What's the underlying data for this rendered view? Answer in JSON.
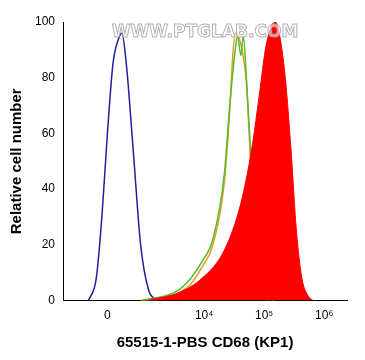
{
  "chart_data": {
    "type": "line",
    "annotations": [
      "WWW.PTGLAB.COM"
    ],
    "x_label": "65515-1-PBS CD68 (KP1)",
    "y_label": "Relative cell number",
    "series": [
      {
        "type": "area",
        "color": "#ff0000",
        "x": [
          1036,
          3900,
          9200,
          21600,
          41000,
          62700,
          84500,
          104600,
          129300,
          153500,
          181900,
          225000,
          278600,
          345000,
          426000,
          529000,
          654000
        ],
        "values": [
          0,
          3,
          8,
          18,
          35,
          55,
          75,
          90,
          98,
          100,
          95,
          80,
          55,
          25,
          8,
          2,
          0
        ]
      },
      {
        "type": "line",
        "color": "#5cb82e",
        "x": [
          808,
          2500,
          3900,
          6000,
          9200,
          14000,
          21600,
          26700,
          33000,
          36000,
          41000,
          45000,
          50600,
          62700,
          77600,
          96000,
          118800,
          147000
        ],
        "values": [
          0,
          2,
          4,
          8,
          14,
          22,
          45,
          70,
          90,
          95,
          88,
          95,
          80,
          45,
          18,
          5,
          1,
          0
        ]
      },
      {
        "type": "line",
        "color": "#d9a520",
        "x": [
          808,
          2500,
          3900,
          6000,
          9200,
          14000,
          21600,
          26700,
          30000,
          33000,
          41000,
          50600,
          62700,
          77600,
          96000,
          118800
        ],
        "values": [
          0,
          1,
          3,
          6,
          12,
          20,
          42,
          68,
          88,
          96,
          92,
          78,
          40,
          15,
          4,
          0
        ]
      },
      {
        "type": "line",
        "color": "#1f1fa0",
        "x": [
          -387,
          -216,
          -105,
          0,
          105,
          216,
          286,
          387,
          562,
          808,
          1132,
          1632
        ],
        "values": [
          0,
          8,
          30,
          60,
          85,
          94,
          96,
          85,
          55,
          20,
          4,
          0
        ]
      }
    ],
    "xlim": [
      -1300,
      2400000
    ],
    "xticks": [
      0,
      {
        "value": 10000,
        "label": "10⁴"
      },
      {
        "value": 100000,
        "label": "10⁵"
      },
      {
        "value": 1000000,
        "label": "10⁶"
      }
    ],
    "ylim": [
      0,
      100
    ],
    "yticks": [
      0,
      20,
      40,
      60,
      80,
      100
    ],
    "grid": false
  }
}
